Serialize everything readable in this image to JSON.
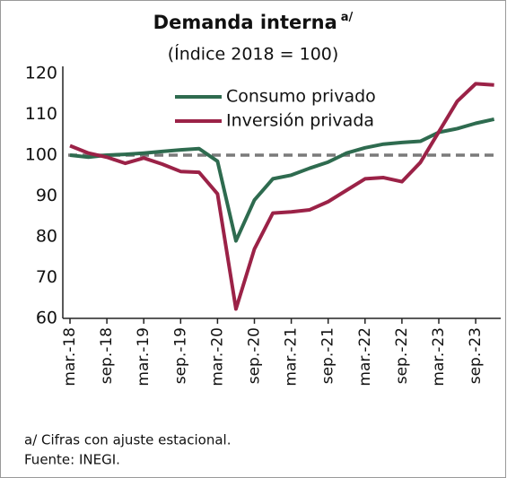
{
  "chart_data": {
    "type": "line",
    "title": "Demanda interna",
    "title_note": "a/",
    "subtitle": "(Índice 2018 = 100)",
    "categories": [
      "mar.-18",
      null,
      "sep.-18",
      null,
      "mar.-19",
      null,
      "sep.-19",
      null,
      "mar.-20",
      null,
      "sep.-20",
      null,
      "mar.-21",
      null,
      "sep.-21",
      null,
      "mar.-22",
      null,
      "sep.-22",
      null,
      "mar.-23",
      null,
      "sep.-23",
      null
    ],
    "series": [
      {
        "name": "Consumo privado",
        "color": "#2e6b4f",
        "values": [
          100,
          99.5,
          100,
          100.2,
          100.5,
          100.9,
          101.3,
          101.6,
          98.5,
          79,
          89,
          94.2,
          95.1,
          96.8,
          98.3,
          100.5,
          101.8,
          102.7,
          103.1,
          103.4,
          105.6,
          106.5,
          107.8,
          108.8
        ]
      },
      {
        "name": "Inversión privada",
        "color": "#9b2247",
        "values": [
          102.3,
          100.5,
          99.5,
          98,
          99.3,
          97.8,
          96,
          95.8,
          90.5,
          62.3,
          77,
          85.8,
          86.1,
          86.6,
          88.6,
          91.4,
          94.2,
          94.5,
          93.5,
          98.2,
          105.7,
          113.2,
          117.5,
          117.2
        ]
      }
    ],
    "reference_line": {
      "value": 100,
      "color": "#7a7a7a"
    },
    "ylim": [
      60,
      120
    ],
    "yticks": [
      60,
      70,
      80,
      90,
      100,
      110,
      120
    ],
    "grid": false,
    "legend": "top",
    "notes": [
      "a/ Cifras con ajuste estacional.",
      "Fuente: INEGI."
    ]
  }
}
